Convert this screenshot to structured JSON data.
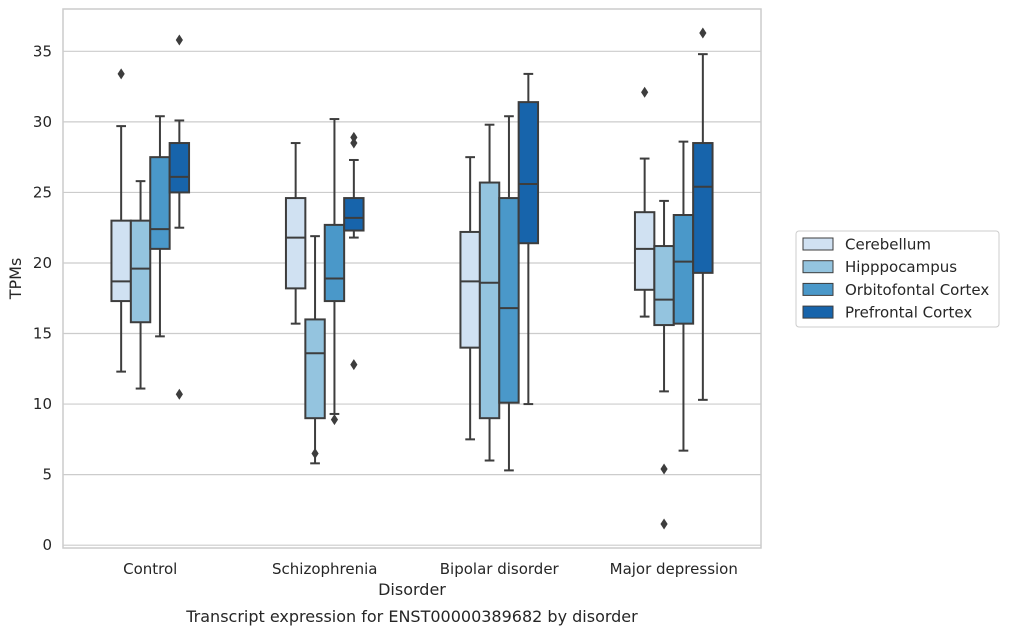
{
  "chart_data": {
    "type": "box",
    "caption": "Transcript expression for ENST00000389682 by disorder",
    "xlabel": "Disorder",
    "ylabel": "TPMs",
    "ylim": [
      -0.2,
      38
    ],
    "yticks": [
      0,
      5,
      10,
      15,
      20,
      25,
      30,
      35
    ],
    "grid": "horizontal",
    "legend_position": "right",
    "categories": [
      "Control",
      "Schizophrenia",
      "Bipolar disorder",
      "Major depression"
    ],
    "series": [
      {
        "name": "Cerebellum",
        "color": "#d0e1f2",
        "boxes": [
          {
            "whisker_low": 12.3,
            "q1": 17.3,
            "median": 18.7,
            "q3": 23.0,
            "whisker_high": 29.7,
            "outliers": [
              33.4
            ]
          },
          {
            "whisker_low": 15.7,
            "q1": 18.2,
            "median": 21.8,
            "q3": 24.6,
            "whisker_high": 28.5,
            "outliers": []
          },
          {
            "whisker_low": 7.5,
            "q1": 14.0,
            "median": 18.7,
            "q3": 22.2,
            "whisker_high": 27.5,
            "outliers": []
          },
          {
            "whisker_low": 16.2,
            "q1": 18.1,
            "median": 21.0,
            "q3": 23.6,
            "whisker_high": 27.4,
            "outliers": [
              32.1
            ]
          }
        ]
      },
      {
        "name": "Hipppocampus",
        "color": "#94c4df",
        "boxes": [
          {
            "whisker_low": 11.1,
            "q1": 15.8,
            "median": 19.6,
            "q3": 23.0,
            "whisker_high": 25.8,
            "outliers": []
          },
          {
            "whisker_low": 5.8,
            "q1": 9.0,
            "median": 13.6,
            "q3": 16.0,
            "whisker_high": 21.9,
            "outliers": [
              6.5
            ]
          },
          {
            "whisker_low": 6.0,
            "q1": 9.0,
            "median": 18.6,
            "q3": 25.7,
            "whisker_high": 29.8,
            "outliers": []
          },
          {
            "whisker_low": 10.9,
            "q1": 15.6,
            "median": 17.4,
            "q3": 21.2,
            "whisker_high": 24.4,
            "outliers": [
              1.5,
              5.4
            ]
          }
        ]
      },
      {
        "name": "Orbitofontal Cortex",
        "color": "#4a98c9",
        "boxes": [
          {
            "whisker_low": 14.8,
            "q1": 21.0,
            "median": 22.4,
            "q3": 27.5,
            "whisker_high": 30.4,
            "outliers": []
          },
          {
            "whisker_low": 9.3,
            "q1": 17.3,
            "median": 18.9,
            "q3": 22.7,
            "whisker_high": 30.2,
            "outliers": [
              8.9
            ]
          },
          {
            "whisker_low": 5.3,
            "q1": 10.1,
            "median": 16.8,
            "q3": 24.6,
            "whisker_high": 30.4,
            "outliers": []
          },
          {
            "whisker_low": 6.7,
            "q1": 15.7,
            "median": 20.1,
            "q3": 23.4,
            "whisker_high": 28.6,
            "outliers": []
          }
        ]
      },
      {
        "name": "Prefrontal Cortex",
        "color": "#1764ab",
        "boxes": [
          {
            "whisker_low": 22.5,
            "q1": 25.0,
            "median": 26.1,
            "q3": 28.5,
            "whisker_high": 30.1,
            "outliers": [
              35.8,
              10.7
            ]
          },
          {
            "whisker_low": 21.8,
            "q1": 22.3,
            "median": 23.2,
            "q3": 24.6,
            "whisker_high": 27.3,
            "outliers": [
              28.5,
              28.9,
              12.8
            ]
          },
          {
            "whisker_low": 10.0,
            "q1": 21.4,
            "median": 25.6,
            "q3": 31.4,
            "whisker_high": 33.4,
            "outliers": []
          },
          {
            "whisker_low": 10.3,
            "q1": 19.3,
            "median": 25.4,
            "q3": 28.5,
            "whisker_high": 34.8,
            "outliers": [
              36.3
            ]
          }
        ]
      }
    ]
  }
}
